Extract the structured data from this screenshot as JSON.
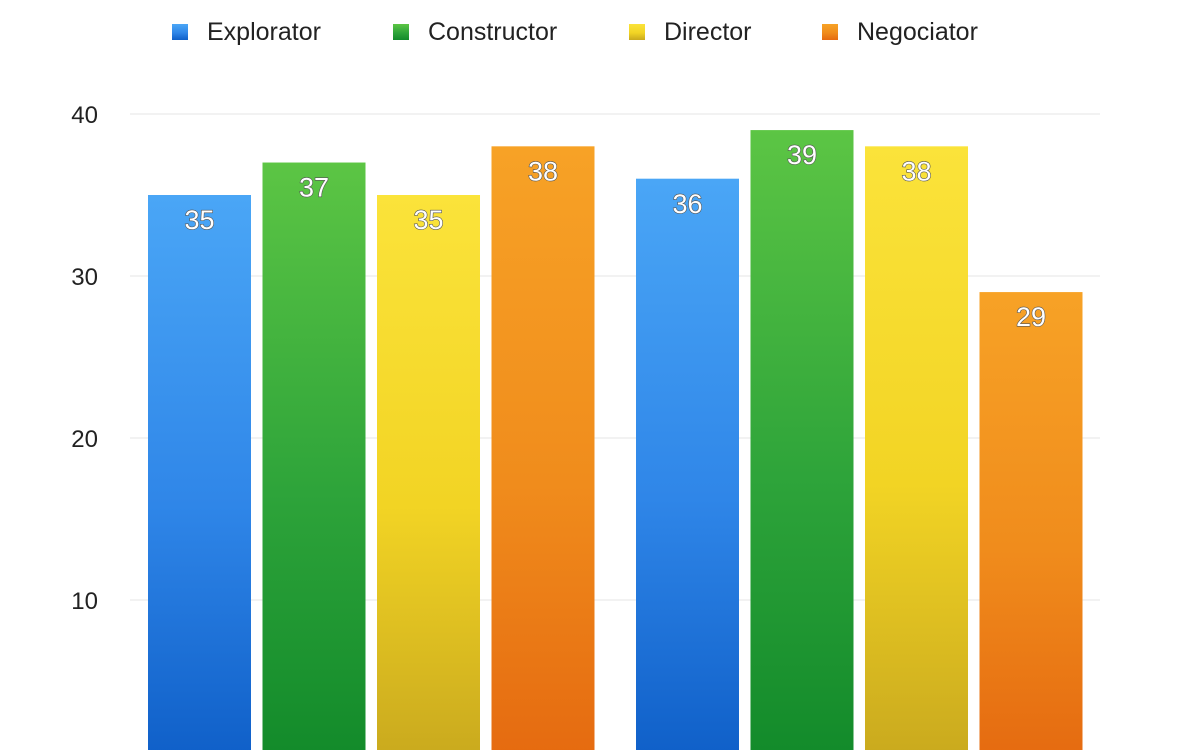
{
  "chart_data": {
    "type": "bar",
    "groups": 2,
    "series": [
      {
        "name": "Explorator",
        "values": [
          35,
          36
        ],
        "color": "#2f86e8",
        "color_light": "#4aa6f6",
        "color_dark": "#0f5fc8"
      },
      {
        "name": "Constructor",
        "values": [
          37,
          39
        ],
        "color": "#2ea43a",
        "color_light": "#5cc544",
        "color_dark": "#128a2a"
      },
      {
        "name": "Director",
        "values": [
          35,
          38
        ],
        "color": "#f2d424",
        "color_light": "#fbe33a",
        "color_dark": "#c9a91e"
      },
      {
        "name": "Negociator",
        "values": [
          38,
          29
        ],
        "color": "#f08c1c",
        "color_light": "#f7a226",
        "color_dark": "#e56a10"
      }
    ],
    "y_ticks": [
      10,
      20,
      30,
      40
    ],
    "ylim": [
      0,
      45
    ],
    "grid": true,
    "legend": "top",
    "show_data_labels": true
  }
}
